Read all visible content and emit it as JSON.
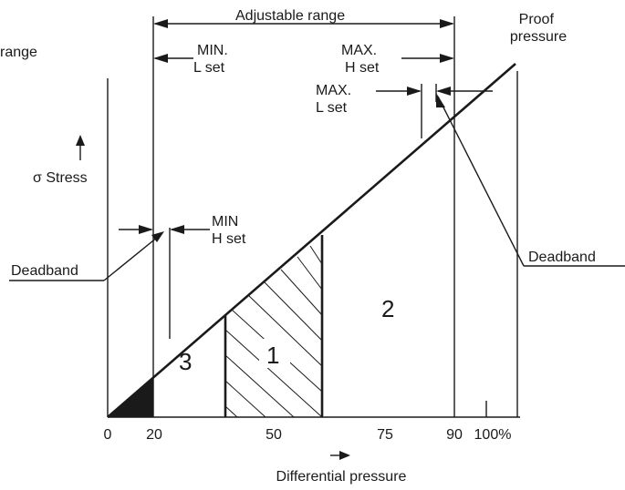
{
  "title_fragment": "range",
  "adjustable_range_label": "Adjustable range",
  "proof_pressure_label": [
    "Proof",
    "pressure"
  ],
  "min_l_set_label": [
    "MIN.",
    "L set"
  ],
  "max_h_set_label": [
    "MAX.",
    "H set"
  ],
  "max_l_set_label": [
    "MAX.",
    "L set"
  ],
  "min_h_set_label": [
    "MIN",
    "H set"
  ],
  "stress_axis_label": "σ Stress",
  "deadband_left_label": "Deadband",
  "deadband_right_label": "Deadband",
  "regions": [
    "1",
    "2",
    "3"
  ],
  "x_ticks": [
    "0",
    "20",
    "50",
    "75",
    "90",
    "100%"
  ],
  "x_axis_label": "Differential pressure"
}
